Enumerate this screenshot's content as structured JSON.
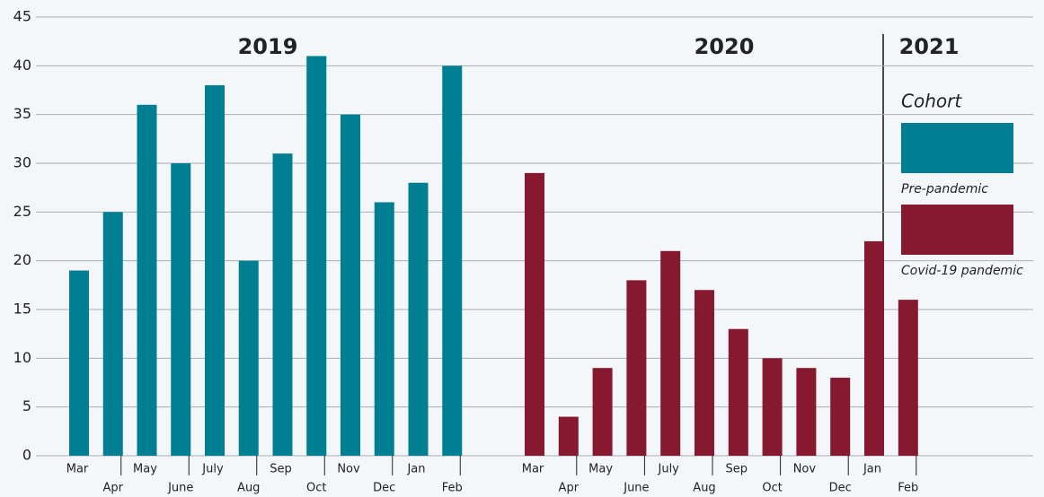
{
  "chart_data": {
    "type": "bar",
    "categories": [
      "Mar",
      "Apr",
      "May",
      "June",
      "July",
      "Aug",
      "Sep",
      "Oct",
      "Nov",
      "Dec",
      "Jan",
      "Feb",
      "Mar",
      "Apr",
      "May",
      "June",
      "July",
      "Aug",
      "Sep",
      "Oct",
      "Nov",
      "Dec",
      "Jan",
      "Feb"
    ],
    "series": [
      {
        "name": "Pre-pandemic",
        "color": "#007f93",
        "values": [
          19,
          25,
          36,
          30,
          38,
          20,
          31,
          41,
          35,
          26,
          28,
          40,
          null,
          null,
          null,
          null,
          null,
          null,
          null,
          null,
          null,
          null,
          null,
          null
        ]
      },
      {
        "name": "Covid-19 pandemic",
        "color": "#86182f",
        "values": [
          null,
          null,
          null,
          null,
          null,
          null,
          null,
          null,
          null,
          null,
          null,
          null,
          29,
          4,
          9,
          18,
          21,
          17,
          13,
          10,
          9,
          8,
          22,
          16
        ]
      }
    ],
    "annotations": [
      "2019",
      "2020",
      "2021"
    ],
    "legend_title": "Cohort",
    "ylim": [
      0,
      45
    ],
    "yticks": [
      0,
      5,
      10,
      15,
      20,
      25,
      30,
      35,
      40,
      45
    ],
    "grid": true,
    "legend": "right"
  }
}
